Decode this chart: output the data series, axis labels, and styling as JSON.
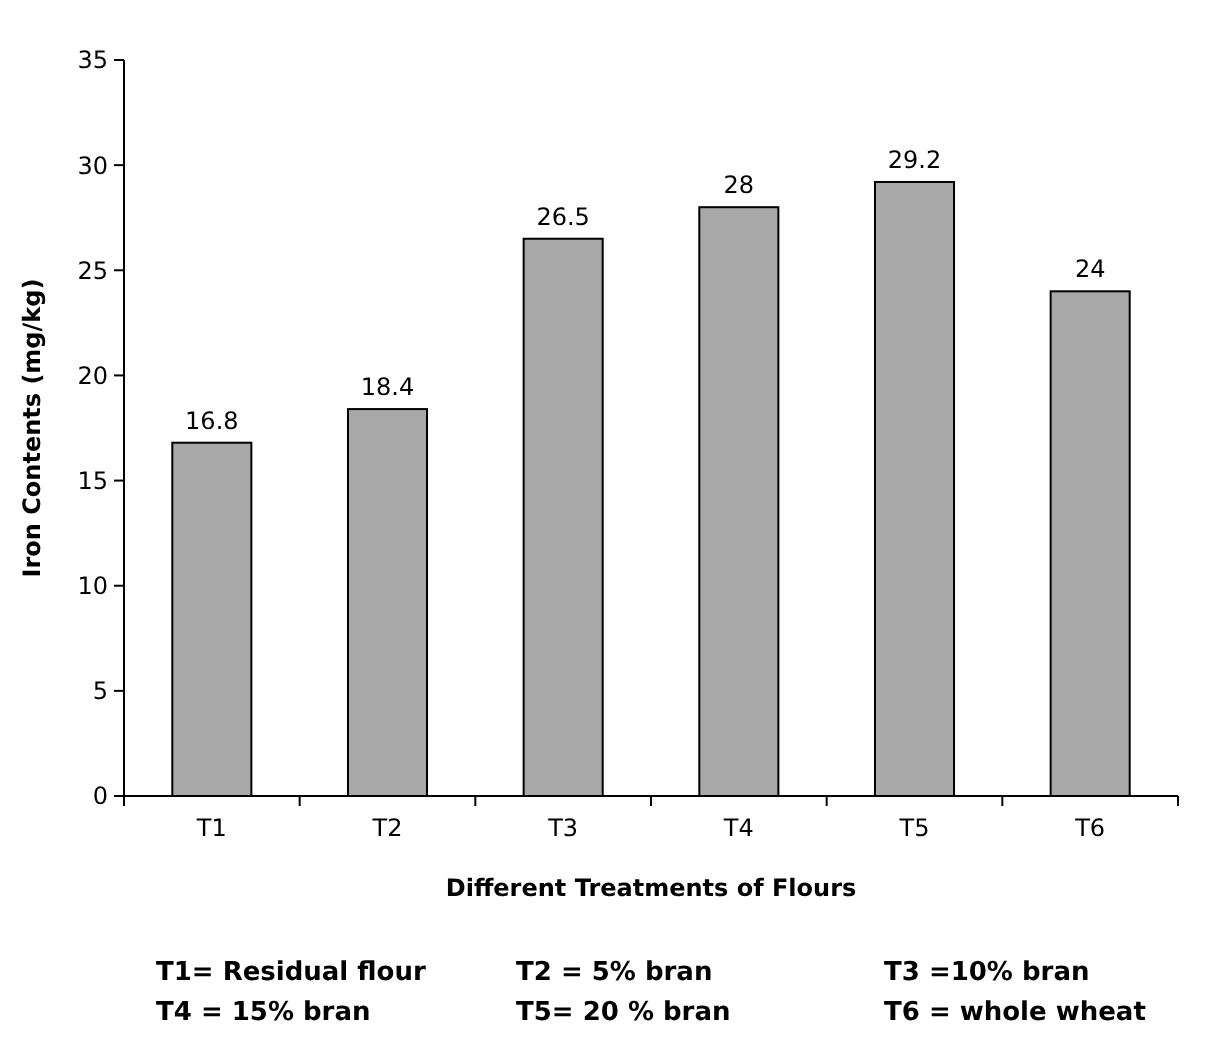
{
  "chart_data": {
    "type": "bar",
    "xlabel": "Different Treatments of Flours",
    "ylabel": "Iron Contents (mg/kg)",
    "categories": [
      "T1",
      "T2",
      "T3",
      "T4",
      "T5",
      "T6"
    ],
    "values": [
      16.8,
      18.4,
      26.5,
      28,
      29.2,
      24
    ],
    "color": "#a8a8a8",
    "ylim": [
      0,
      35
    ],
    "yticks": [
      0,
      5,
      10,
      15,
      20,
      25,
      30,
      35
    ],
    "grid": false,
    "data_labels": true,
    "annotations": [
      "T1= Residual flour",
      "T2 = 5% bran",
      "T3 =10% bran",
      "T4 = 15% bran",
      "T5= 20 % bran",
      "T6 = whole wheat"
    ]
  }
}
